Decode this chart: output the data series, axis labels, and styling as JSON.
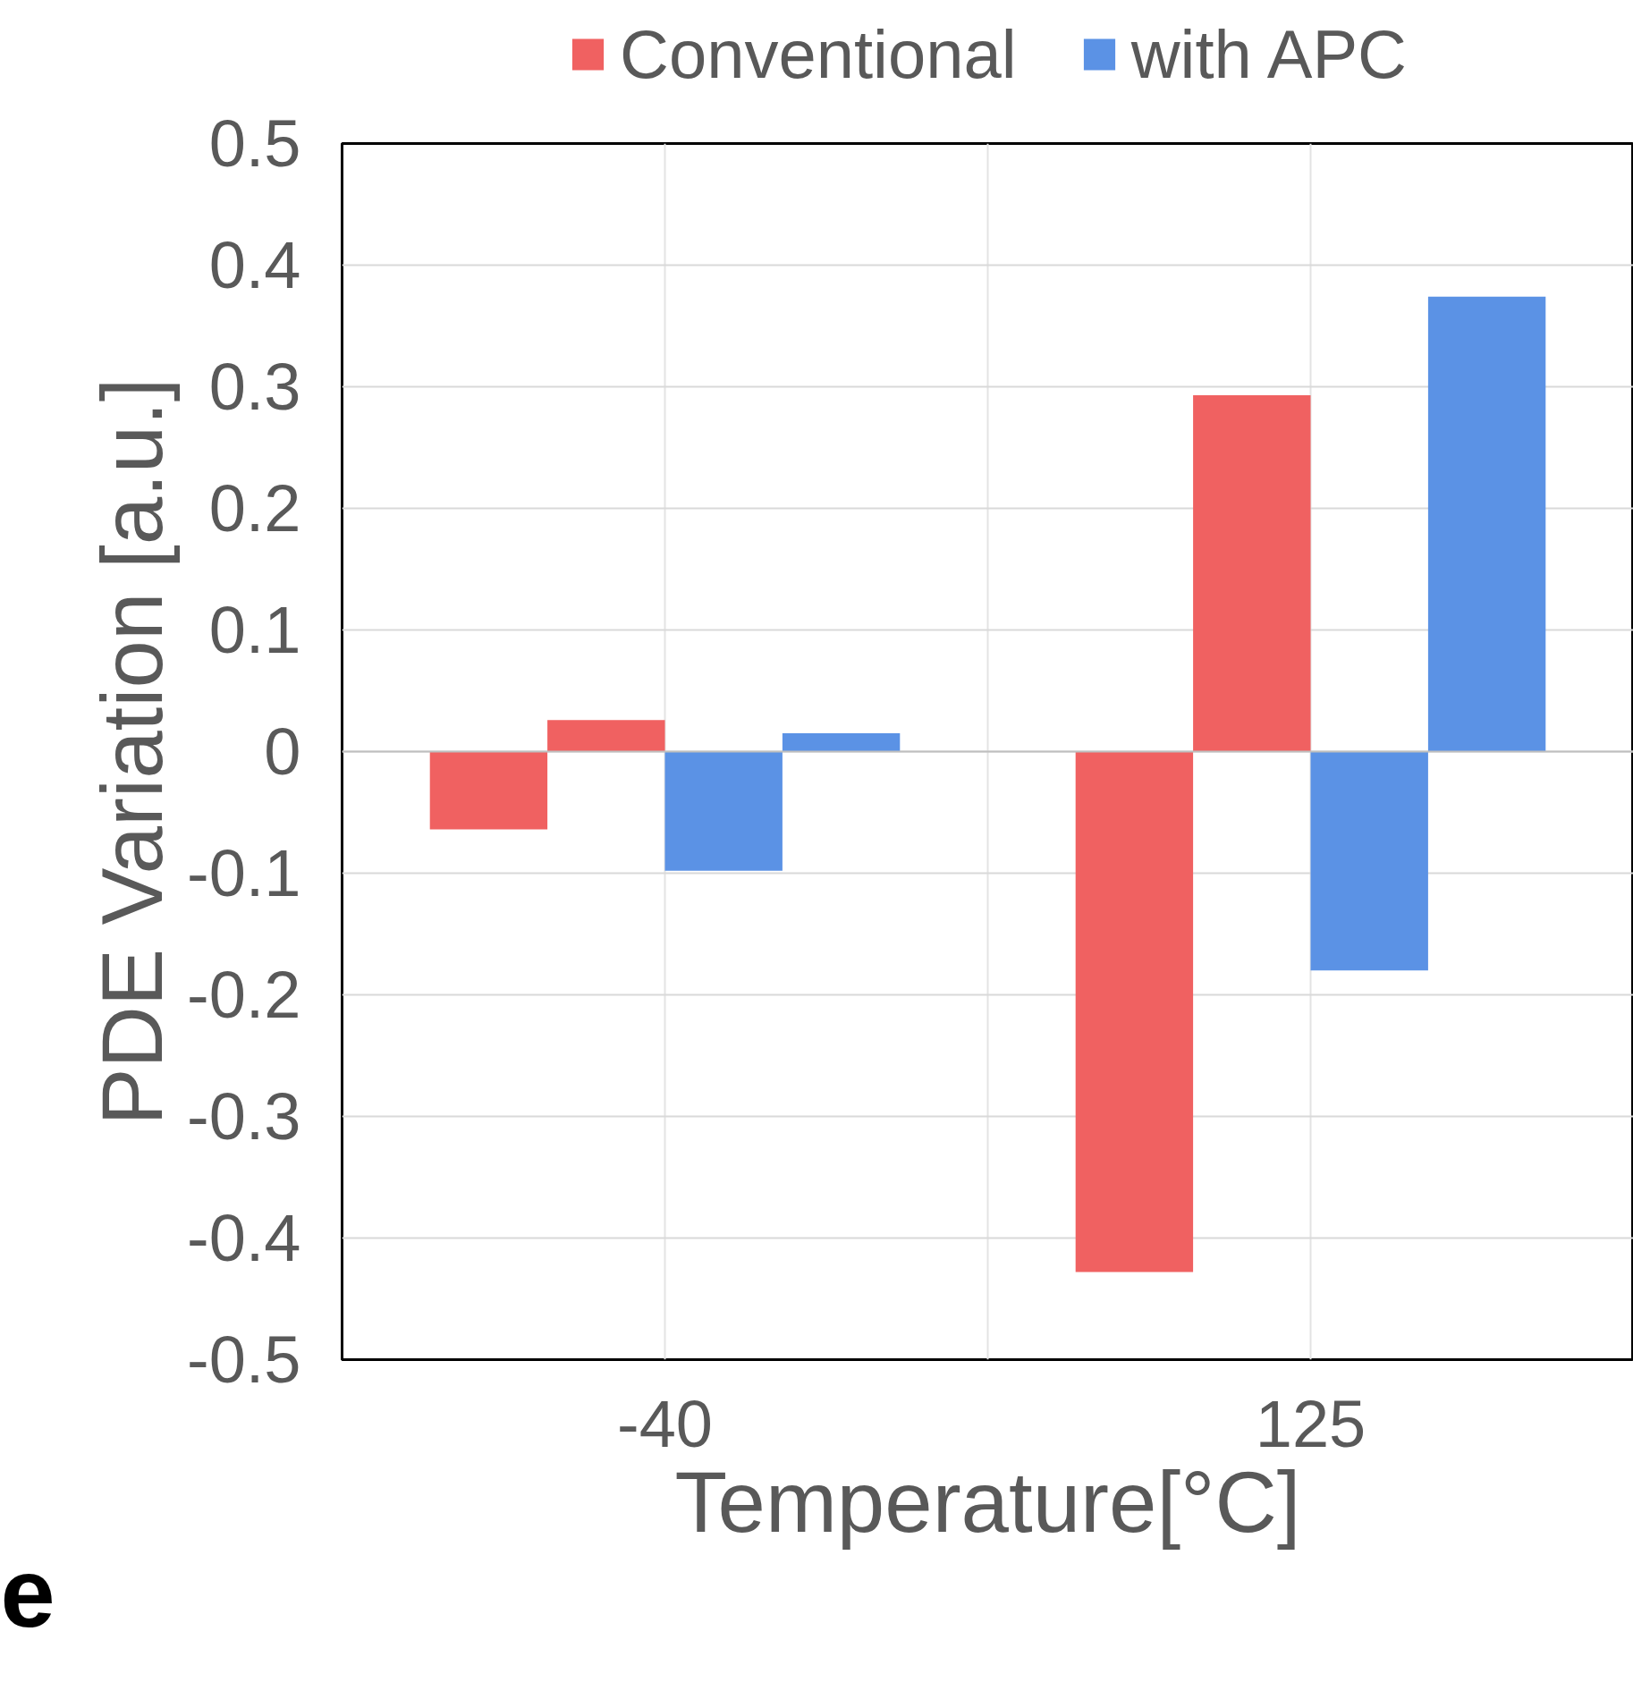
{
  "chart_data": {
    "type": "bar",
    "categories": [
      "-40",
      "125"
    ],
    "xlabel": "Temperature[°C]",
    "ylabel": "PDE Variation [a.u.]",
    "series": [
      {
        "name": "Conventional",
        "color": "#f06161",
        "values": [
          -0.064,
          -0.428
        ]
      },
      {
        "color": "#f06161",
        "values": [
          0.026,
          0.293
        ]
      },
      {
        "name": "with APC",
        "color": "#5b92e5",
        "values": [
          -0.098,
          -0.18
        ]
      },
      {
        "color": "#5b92e5",
        "values": [
          0.015,
          0.374
        ]
      }
    ],
    "ylim": [
      -0.5,
      0.5
    ],
    "yticks": [
      0.5,
      0.4,
      0.3,
      0.2,
      0.1,
      0,
      -0.1,
      -0.2,
      -0.3,
      -0.4,
      -0.5
    ],
    "grid": true,
    "legend": "top",
    "annotations": [
      "e"
    ]
  }
}
